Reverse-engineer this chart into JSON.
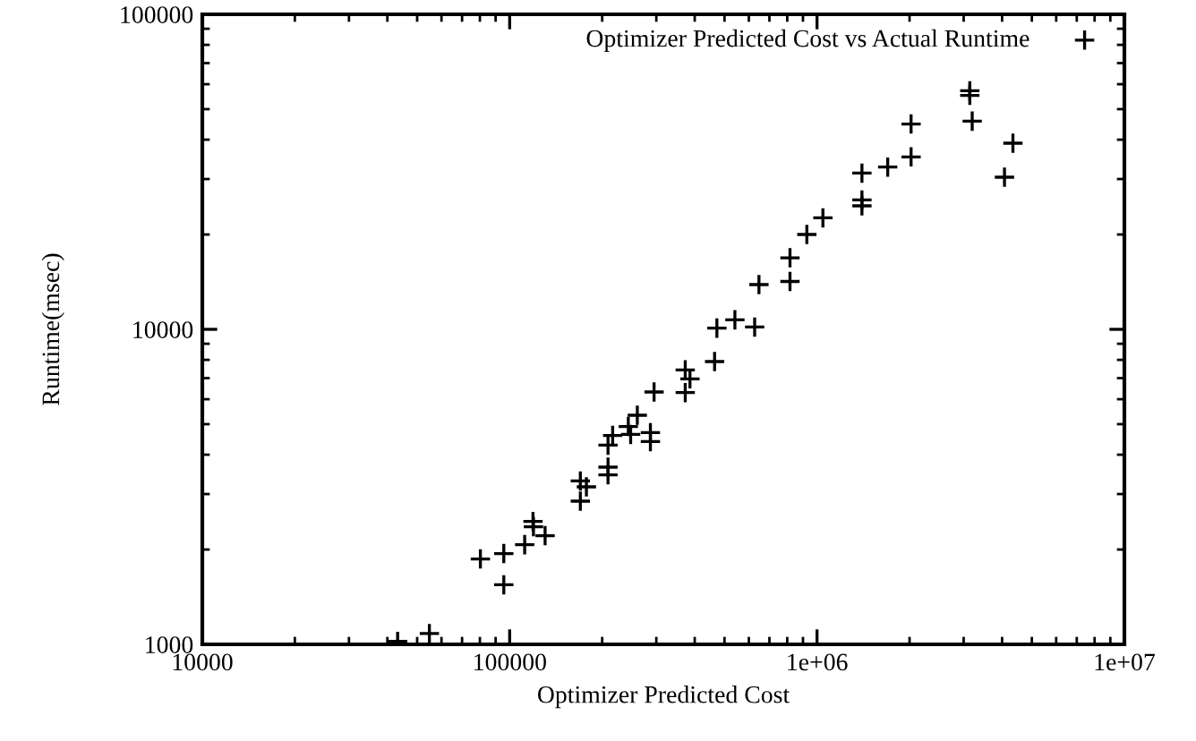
{
  "chart_data": {
    "type": "scatter",
    "xlabel": "Optimizer Predicted Cost",
    "ylabel": "Runtime(msec)",
    "log": "xy",
    "xlim": [
      10000,
      10000000
    ],
    "ylim": [
      1000,
      100000
    ],
    "xticks": [
      10000,
      100000,
      {
        "value": 1000000,
        "label": "1e+06"
      },
      {
        "value": 10000000,
        "label": "1e+07"
      }
    ],
    "yticks": [
      1000,
      10000,
      100000
    ],
    "grid": false,
    "legend": "top right",
    "marker": "cross",
    "series": [
      {
        "name": "Optimizer Predicted Cost vs Actual Runtime",
        "color": "#000000",
        "x": [
          43200,
          54800,
          80300,
          95700,
          95700,
          111900,
          119100,
          119500,
          130400,
          169800,
          177700,
          169800,
          208900,
          216300,
          208900,
          208900,
          243200,
          247500,
          260200,
          287000,
          287000,
          295000,
          372600,
          386000,
          372600,
          464200,
          472300,
          540500,
          626700,
          647300,
          816600,
          816600,
          926500,
          1045000,
          1400000,
          1400000,
          1400000,
          1698000,
          2023000,
          2023000,
          3141000,
          3141000,
          3198000,
          4339000,
          4073000
        ],
        "values": [
          1022,
          1082,
          1867,
          1941,
          1546,
          2072,
          2455,
          2362,
          2213,
          3302,
          3162,
          2848,
          4290,
          4603,
          3652,
          3452,
          4914,
          4638,
          5337,
          4699,
          4402,
          6325,
          7432,
          6962,
          6298,
          7903,
          10090,
          10720,
          10170,
          13870,
          14190,
          16870,
          20000,
          22590,
          31330,
          25750,
          24660,
          32750,
          44850,
          35260,
          57180,
          55300,
          45800,
          38990,
          30400
        ]
      }
    ]
  }
}
